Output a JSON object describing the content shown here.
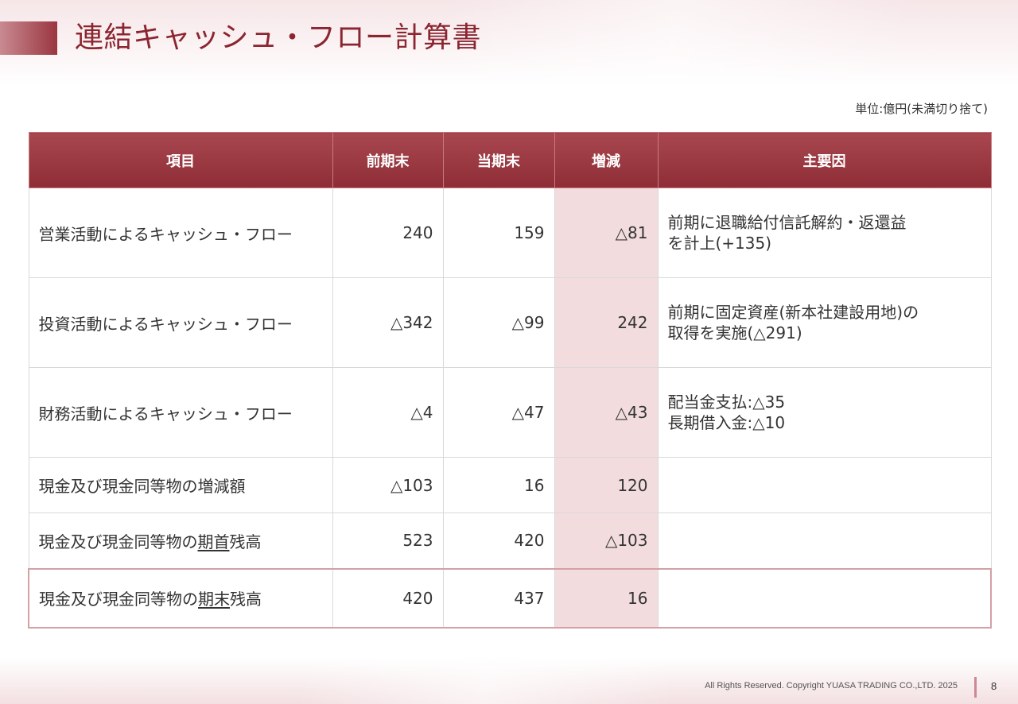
{
  "title": "連結キャッシュ・フロー計算書",
  "unit_note": "単位:億円(未満切り捨て)",
  "table": {
    "headers": {
      "item": "項目",
      "prev": "前期末",
      "curr": "当期末",
      "change": "増減",
      "reason": "主要因"
    },
    "rows": [
      {
        "item": "営業活動によるキャッシュ・フロー",
        "prev": "240",
        "curr": "159",
        "change": "△81",
        "reason_line1": "前期に退職給付信託解約・返還益",
        "reason_line2": "を計上(+135)"
      },
      {
        "item": "投資活動によるキャッシュ・フロー",
        "prev": "△342",
        "curr": "△99",
        "change": "242",
        "reason_line1": "前期に固定資産(新本社建設用地)の",
        "reason_line2": "取得を実施(△291)"
      },
      {
        "item": "財務活動によるキャッシュ・フロー",
        "prev": "△4",
        "curr": "△47",
        "change": "△43",
        "reason_line1": "配当金支払:△35",
        "reason_line2": "長期借入金:△10"
      },
      {
        "item": "現金及び現金同等物の増減額",
        "prev": "△103",
        "curr": "16",
        "change": "120",
        "reason_line1": "",
        "reason_line2": ""
      },
      {
        "item_prefix": "現金及び現金同等物の",
        "item_underlined": "期首",
        "item_suffix": "残高",
        "prev": "523",
        "curr": "420",
        "change": "△103",
        "reason_line1": "",
        "reason_line2": ""
      },
      {
        "item_prefix": "現金及び現金同等物の",
        "item_underlined": "期末",
        "item_suffix": "残高",
        "prev": "420",
        "curr": "437",
        "change": "16",
        "reason_line1": "",
        "reason_line2": ""
      }
    ]
  },
  "footer": {
    "copyright": "All Rights Reserved. Copyright  YUASA TRADING CO.,LTD. 2025",
    "page_number": "8"
  },
  "colors": {
    "accent": "#8b2530",
    "header_bg": "#982f38",
    "change_column_bg": "#f3dcde"
  }
}
